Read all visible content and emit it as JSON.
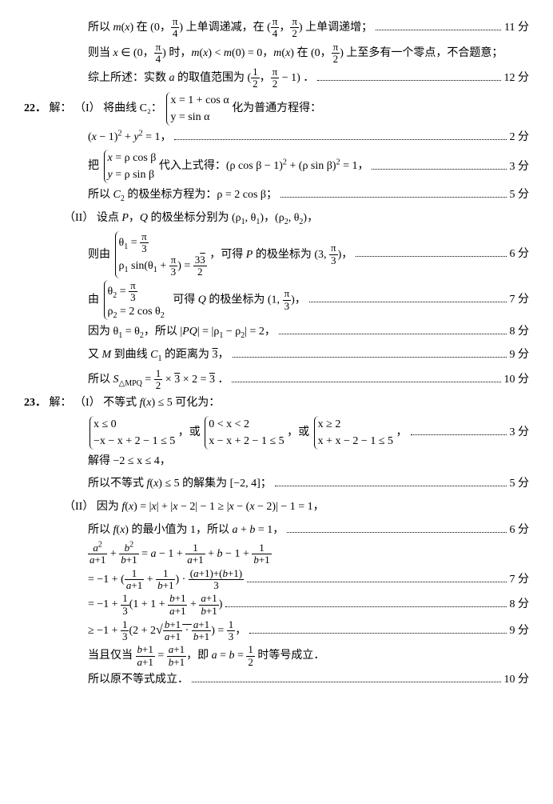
{
  "q21": {
    "l1": {
      "text": "所以 m(x) 在 (0, π/4) 上单调递减，在 (π/4, π/2) 上单调递增；",
      "score": "11 分"
    },
    "l2": {
      "text": "则当 x ∈ (0, π/4) 时，m(x) < m(0) = 0，m(x) 在 (0, π/2) 上至多有一个零点，不合题意；"
    },
    "l3": {
      "text": "综上所述：实数 a 的取值范围为 (1/2, π/2 − 1) ．",
      "score": "12 分"
    }
  },
  "q22": {
    "num": "22．",
    "label": "解：",
    "p1": {
      "label": "（I）",
      "l1a": "将曲线 C₂：",
      "l1b_r1": "x = 1 + cos α",
      "l1b_r2": "y = sin α",
      "l1c": "化为普通方程得：",
      "l2": {
        "text": "(x − 1)² + y² = 1，",
        "score": "2 分"
      },
      "l3a": "把",
      "l3b_r1": "x = ρ cos β",
      "l3b_r2": "y = ρ sin β",
      "l3c": {
        "text": "代入上式得：(ρ cos β − 1)² + (ρ sin β)² = 1，",
        "score": "3 分"
      },
      "l4": {
        "text": "所以 C₂ 的极坐标方程为：ρ = 2 cos β；",
        "score": "5 分"
      }
    },
    "p2": {
      "label": "（II）",
      "l1": "设点 P，Q 的极坐标分别为 (ρ₁, θ₁)，(ρ₂, θ₂)，",
      "l2a": "则由",
      "l2b_r1": "θ₁ = π/3",
      "l2b_r2": "ρ₁ sin(θ₁ + π/3) = 3√3 / 2",
      "l2c": {
        "text": "，可得 P 的极坐标为 (3, π/3)，",
        "score": "6 分"
      },
      "l3a": "由",
      "l3b_r1": "θ₂ = π/3",
      "l3b_r2": "ρ₂ = 2 cos θ₂",
      "l3c": {
        "text": "可得 Q 的极坐标为 (1, π/3)，",
        "score": "7 分"
      },
      "l4": {
        "text": "因为 θ₁ = θ₂，所以 |PQ| = |ρ₁ − ρ₂| = 2，",
        "score": "8 分"
      },
      "l5": {
        "text": "又 M 到曲线 C₁ 的距离为 √3，",
        "score": "9 分"
      },
      "l6": {
        "text": "所以 S△MPQ = (1/2) × √3 × 2 = √3 ．",
        "score": "10 分"
      }
    }
  },
  "q23": {
    "num": "23．",
    "label": "解：",
    "p1": {
      "label": "（I）",
      "l1": "不等式 f(x) ≤ 5 可化为：",
      "l2": {
        "c1_r1": "x ≤ 0",
        "c1_r2": "−x − x + 2 − 1 ≤ 5",
        "or1": "，或",
        "c2_r1": "0 < x < 2",
        "c2_r2": "x − x + 2 − 1 ≤ 5",
        "or2": "，或",
        "c3_r1": "x ≥ 2",
        "c3_r2": "x + x − 2 − 1 ≤ 5",
        "comma": "，",
        "score": "3 分"
      },
      "l3": "解得 −2 ≤ x ≤ 4，",
      "l4": {
        "text": "所以不等式 f(x) ≤ 5 的解集为 [−2, 4]；",
        "score": "5 分"
      }
    },
    "p2": {
      "label": "（II）",
      "l1": "因为 f(x) = |x| + |x − 2| − 1 ≥ |x − (x − 2)| − 1 = 1，",
      "l2": {
        "text": "所以 f(x) 的最小值为 1，所以 a + b = 1，",
        "score": "6 分"
      },
      "l3": "a²/(a+1) + b²/(b+1) = a − 1 + 1/(a+1) + b − 1 + 1/(b+1)",
      "l4": {
        "text": "= −1 + (1/(a+1) + 1/(b+1)) · ((a+1)+(b+1))/3",
        "score": "7 分"
      },
      "l5": {
        "text": "= −1 + (1/3)(1 + 1 + (b+1)/(a+1) + (a+1)/(b+1))",
        "score": "8 分"
      },
      "l6": {
        "text": "≥ −1 + (1/3)(2 + 2√((b+1)/(a+1) · (a+1)/(b+1))) = 1/3，",
        "score": "9 分"
      },
      "l7": "当且仅当 (b+1)/(a+1) = (a+1)/(b+1)，即 a = b = 1/2 时等号成立．",
      "l8": {
        "text": "所以原不等式成立．",
        "score": "10 分"
      }
    }
  }
}
